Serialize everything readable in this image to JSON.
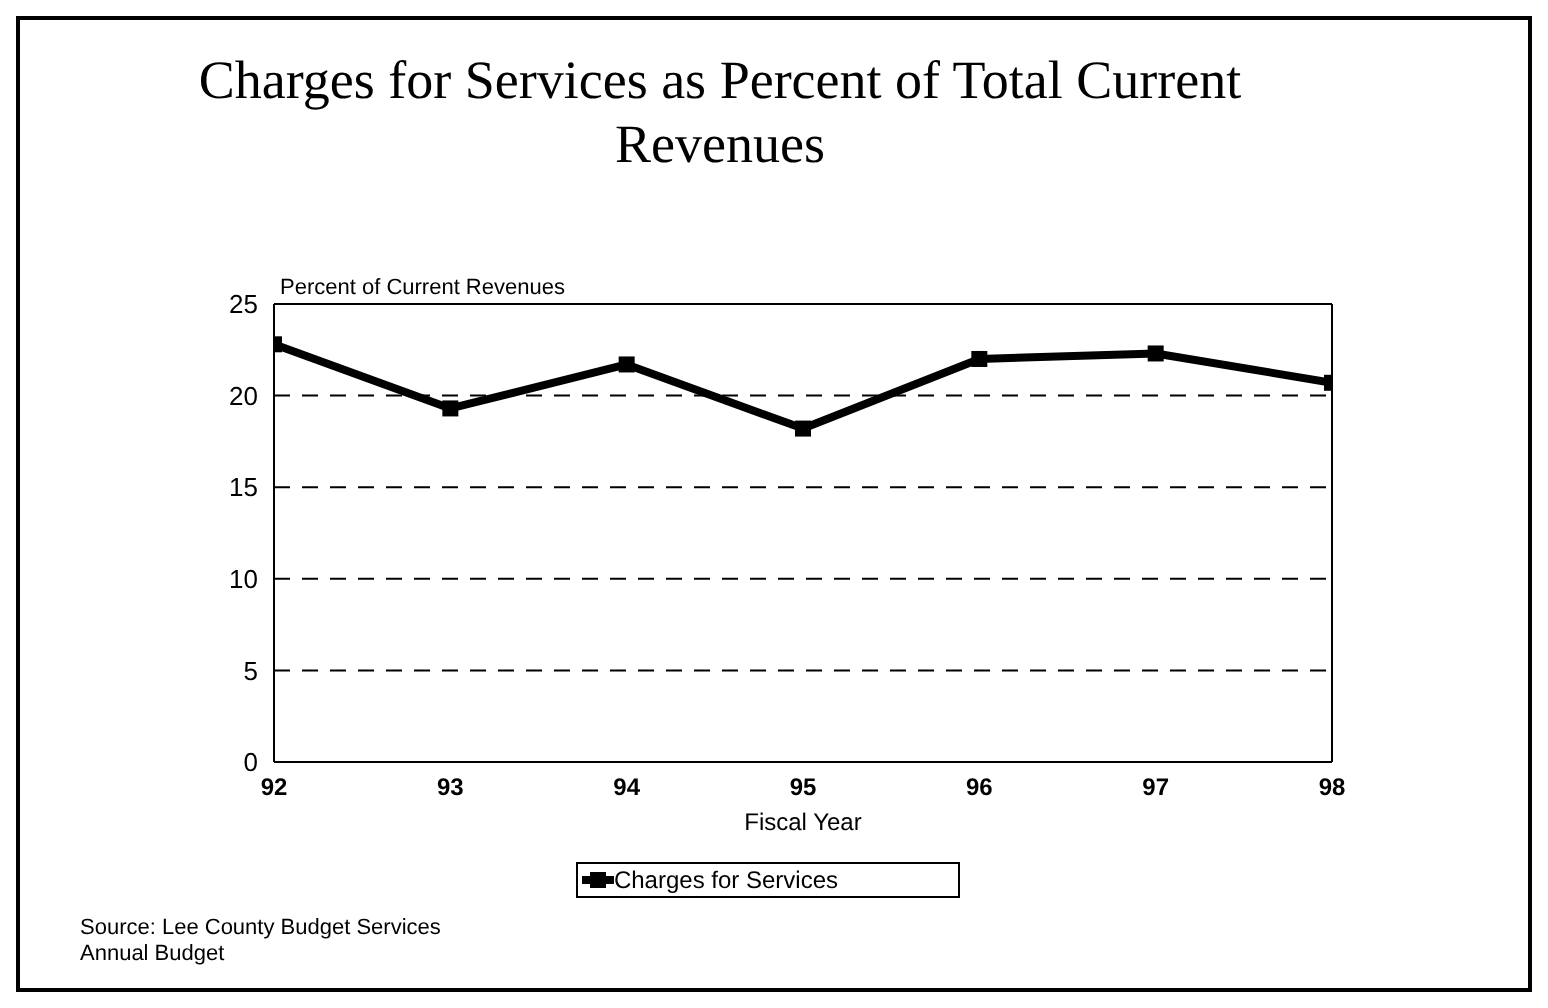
{
  "chart_data": {
    "type": "line",
    "title": "Charges for Services as Percent of Total Current Revenues",
    "ylabel": "Percent of Current Revenues",
    "xlabel": "Fiscal Year",
    "x": [
      92,
      93,
      94,
      95,
      96,
      97,
      98
    ],
    "series": [
      {
        "name": "Charges for Services",
        "color": "#000000",
        "values": [
          22.8,
          19.3,
          21.7,
          18.2,
          22.0,
          22.3,
          20.7
        ]
      }
    ],
    "xlim": [
      92,
      98
    ],
    "xticks": [
      92,
      93,
      94,
      95,
      96,
      97,
      98
    ],
    "ylim": [
      0,
      25
    ],
    "yticks": [
      0,
      5,
      10,
      15,
      20,
      25
    ],
    "grid": "y",
    "legend": "bottom",
    "marker": "square",
    "line_style": "solid",
    "annotations": [
      "Source:  Lee County Budget Services",
      "Annual Budget"
    ]
  }
}
